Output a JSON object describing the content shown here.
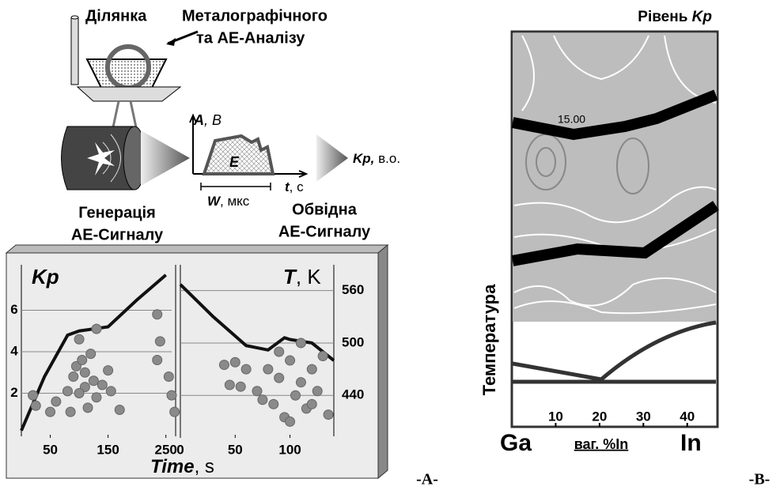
{
  "diagram": {
    "site_1": "Ділянка",
    "site_2": "Металографічного",
    "site_3": "та АЕ-Аналізу",
    "axis_a": "A",
    "axis_b": ", B",
    "area": "E",
    "width": "W",
    "width_unit": ", мкс",
    "time": "t",
    "time_unit": ", с",
    "kp": "Kp,",
    "kp_unit": " в.о.",
    "gen_1": "Генерація",
    "gen_2": "АЕ-Сигналу",
    "env_1": "Обвідна",
    "env_2": "АЕ-Сигналу"
  },
  "panel_labels": [
    "-A-",
    "-B-"
  ],
  "chart_data": [
    {
      "type": "line",
      "ylabel": "Kp",
      "xlabel": "Time",
      "xlabel_unit": ", s",
      "xlim": [
        0,
        260
      ],
      "ylim": [
        0,
        8
      ],
      "xticks": [
        50,
        150,
        250
      ],
      "yticks": [
        2,
        4,
        6
      ],
      "grid": true,
      "series": [
        {
          "type": "line",
          "color": "#111111",
          "x": [
            0,
            40,
            80,
            100,
            150,
            200,
            250
          ],
          "values": [
            0.2,
            2.8,
            4.8,
            5.0,
            5.2,
            6.5,
            7.7
          ]
        },
        {
          "type": "scatter",
          "color": "#8a8a8a",
          "x": [
            20,
            25,
            50,
            60,
            80,
            85,
            90,
            95,
            100,
            105,
            110,
            115,
            120,
            125,
            130,
            140,
            150,
            155,
            170,
            235,
            240,
            235,
            255,
            260,
            265,
            110,
            100,
            130
          ],
          "values": [
            1.9,
            1.4,
            1.1,
            1.6,
            2.1,
            1.1,
            2.8,
            3.3,
            4.6,
            3.6,
            2.3,
            1.3,
            3.9,
            2.6,
            5.1,
            2.4,
            3.1,
            2.1,
            1.2,
            5.8,
            4.5,
            3.6,
            2.8,
            1.9,
            1.1,
            3.0,
            2.0,
            1.8
          ]
        }
      ]
    },
    {
      "type": "line",
      "ylabel": "T",
      "ylabel_unit": ", K",
      "xlim": [
        0,
        140
      ],
      "ylim": [
        395,
        585
      ],
      "xticks": [
        0,
        50,
        100
      ],
      "yticks": [
        440,
        500,
        560
      ],
      "grid": true,
      "series": [
        {
          "type": "line",
          "color": "#111111",
          "x": [
            0,
            30,
            60,
            80,
            95,
            100,
            120,
            140
          ],
          "values": [
            567,
            530,
            497,
            492,
            506,
            504,
            500,
            480
          ]
        },
        {
          "type": "scatter",
          "color": "#8a8a8a",
          "x": [
            40,
            50,
            60,
            45,
            55,
            70,
            80,
            85,
            90,
            95,
            100,
            105,
            110,
            115,
            120,
            125,
            130,
            135,
            90,
            100,
            110,
            75,
            120
          ],
          "values": [
            475,
            478,
            470,
            452,
            450,
            445,
            470,
            430,
            460,
            415,
            480,
            440,
            455,
            425,
            470,
            445,
            485,
            418,
            490,
            410,
            500,
            435,
            430
          ]
        }
      ]
    },
    {
      "type": "contour",
      "title": "Рівень ",
      "title_em": "Kp",
      "ylabel": "Температура",
      "xlabel": "ваг. %In",
      "left_label": "Ga",
      "right_label": "In",
      "annotation": "15.00",
      "xlim": [
        0,
        46
      ],
      "xticks": [
        10,
        20,
        30,
        40
      ]
    }
  ]
}
